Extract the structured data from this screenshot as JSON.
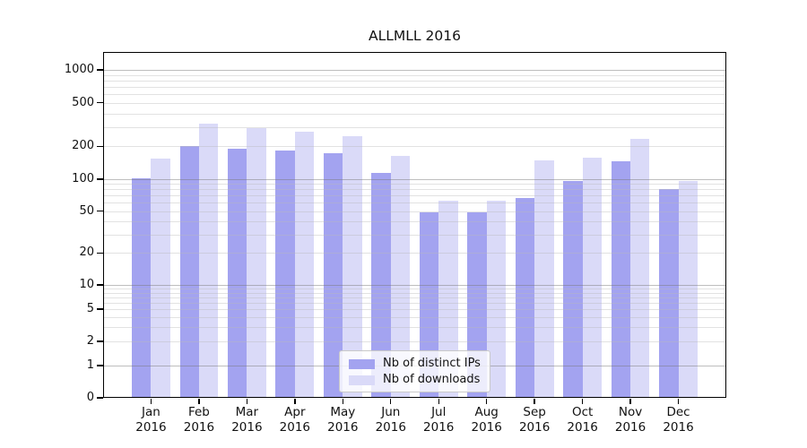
{
  "chart_data": {
    "type": "bar",
    "title": "ALLMLL 2016",
    "categories": [
      "Jan",
      "Feb",
      "Mar",
      "Apr",
      "May",
      "Jun",
      "Jul",
      "Aug",
      "Sep",
      "Oct",
      "Nov",
      "Dec"
    ],
    "xtick_second_line": "2016",
    "series": [
      {
        "name": "Nb of distinct IPs",
        "color": "#a3a3f0",
        "values": [
          101,
          200,
          190,
          183,
          172,
          115,
          49,
          49,
          66,
          96,
          146,
          80
        ]
      },
      {
        "name": "Nb of downloads",
        "color": "#dadaf8",
        "values": [
          155,
          325,
          295,
          270,
          248,
          163,
          63,
          62,
          150,
          156,
          235,
          97
        ]
      }
    ],
    "xlabel": "",
    "ylabel": "",
    "yscale": "symlog",
    "yticks": [
      0,
      1,
      2,
      5,
      10,
      20,
      50,
      100,
      200,
      500,
      1000
    ],
    "ylim": [
      0,
      1500
    ],
    "grid": "both",
    "legend_position": "lower center"
  },
  "colors": {
    "spine": "#000000",
    "background": "#ffffff"
  }
}
